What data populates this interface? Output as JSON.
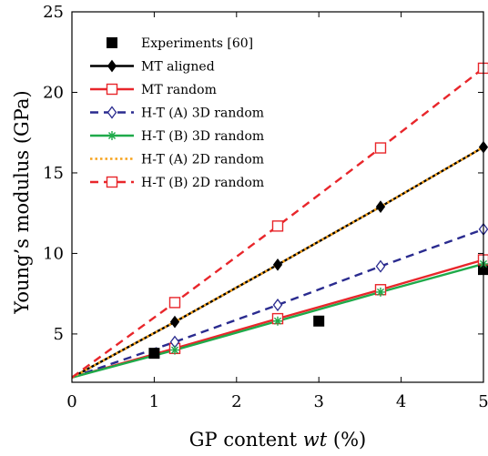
{
  "chart_data": {
    "type": "line",
    "xlabel": {
      "prefix": "GP content ",
      "italic": "wt",
      "suffix": " (%)"
    },
    "ylabel": "Young’s modulus (GPa)",
    "xlim": [
      0,
      5
    ],
    "ylim": [
      2,
      25
    ],
    "xticks": [
      0,
      1,
      2,
      3,
      4,
      5
    ],
    "yticks": [
      5,
      10,
      15,
      20,
      25
    ],
    "grid": false,
    "legend_position": "top-left",
    "series": [
      {
        "name": "Experiments [60]",
        "style": "markers",
        "marker": "filled-square",
        "color": "#000000",
        "x": [
          0,
          1,
          3,
          5
        ],
        "y": [
          2.3,
          3.8,
          5.8,
          9.0
        ]
      },
      {
        "name": "MT aligned",
        "style": "solid",
        "marker": "filled-diamond",
        "color": "#000000",
        "x": [
          0,
          1.25,
          2.5,
          3.75,
          5
        ],
        "y": [
          2.3,
          5.75,
          9.3,
          12.9,
          16.6
        ]
      },
      {
        "name": "MT random",
        "style": "solid",
        "marker": "open-square",
        "color": "#e8262b",
        "x": [
          0,
          1.25,
          2.5,
          3.75,
          5
        ],
        "y": [
          2.3,
          4.1,
          5.95,
          7.75,
          9.6
        ]
      },
      {
        "name": "H-T (A) 3D random",
        "style": "dashed",
        "marker": "open-diamond",
        "color": "#2a2b8f",
        "x": [
          0,
          1.25,
          2.5,
          3.75,
          5
        ],
        "y": [
          2.3,
          4.5,
          6.8,
          9.2,
          11.5
        ]
      },
      {
        "name": "H-T (B) 3D random",
        "style": "solid",
        "marker": "star",
        "color": "#1faa4a",
        "x": [
          0,
          1.25,
          2.5,
          3.75,
          5
        ],
        "y": [
          2.3,
          4.0,
          5.8,
          7.6,
          9.35
        ]
      },
      {
        "name": "H-T (A) 2D random",
        "style": "dotted",
        "marker": "none",
        "color": "#f7a21b",
        "x": [
          0,
          1.25,
          2.5,
          3.75,
          5
        ],
        "y": [
          2.3,
          5.75,
          9.3,
          12.9,
          16.6
        ]
      },
      {
        "name": "H-T (B) 2D random",
        "style": "dashed",
        "marker": "open-square",
        "color": "#e8262b",
        "x": [
          0,
          1.25,
          2.5,
          3.75,
          5
        ],
        "y": [
          2.3,
          6.95,
          11.7,
          16.55,
          21.5
        ]
      }
    ]
  }
}
